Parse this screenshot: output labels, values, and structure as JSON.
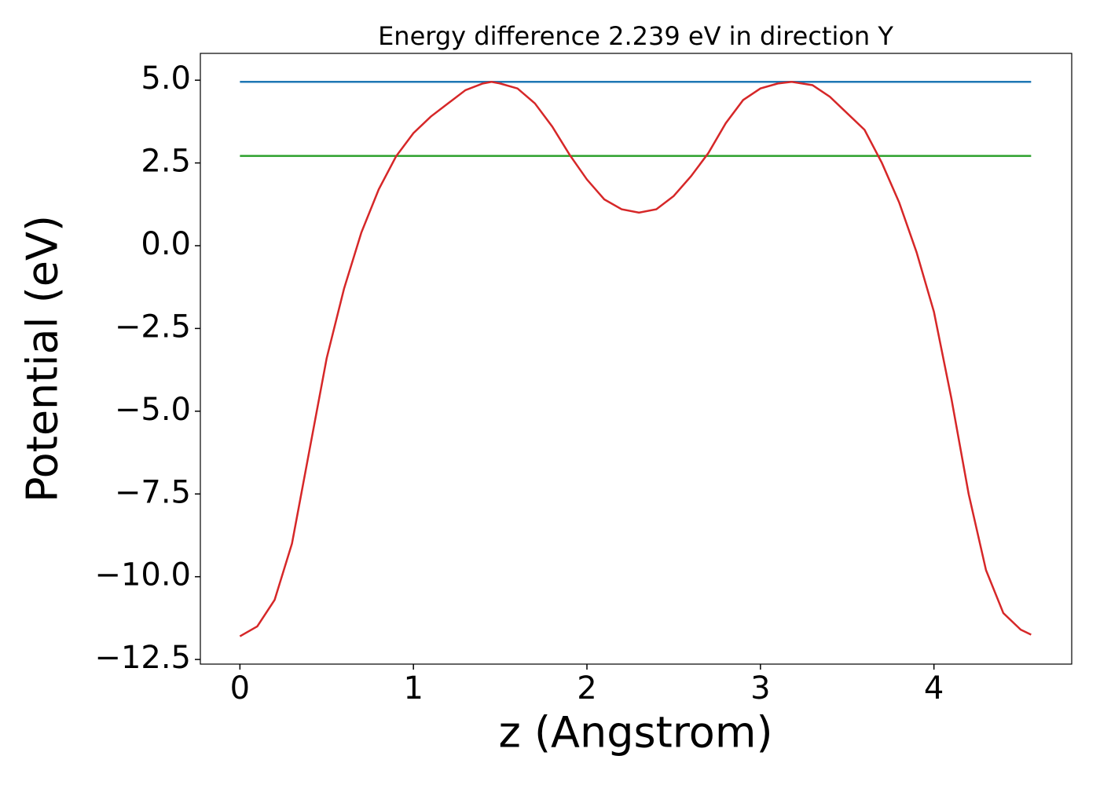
{
  "chart_data": {
    "type": "line",
    "title": "Energy difference 2.239 eV in direction Y",
    "xlabel": "z (Angstrom)",
    "ylabel": "Potential (eV)",
    "xlim": [
      -0.228,
      4.794
    ],
    "ylim": [
      -12.64,
      5.81
    ],
    "xticks": [
      0,
      1,
      2,
      3,
      4
    ],
    "yticks": [
      {
        "value": 5,
        "label": "5.0"
      },
      {
        "value": 2.5,
        "label": "2.5"
      },
      {
        "value": 0,
        "label": "0.0"
      },
      {
        "value": -2.5,
        "label": "−2.5"
      },
      {
        "value": -5,
        "label": "−5.0"
      },
      {
        "value": -7.5,
        "label": "−7.5"
      },
      {
        "value": -10,
        "label": "−10.0"
      },
      {
        "value": -12.5,
        "label": "−12.5"
      }
    ],
    "series": [
      {
        "color": "#1f77b4",
        "x": [
          0,
          4.56
        ],
        "values": [
          4.95,
          4.95
        ]
      },
      {
        "color": "#2ca02c",
        "x": [
          0,
          4.56
        ],
        "values": [
          2.711,
          2.711
        ]
      },
      {
        "color": "#d62728",
        "x": [
          0,
          0.1,
          0.2,
          0.3,
          0.4,
          0.5,
          0.6,
          0.7,
          0.8,
          0.9,
          1.0,
          1.1,
          1.2,
          1.3,
          1.4,
          1.45,
          1.5,
          1.6,
          1.7,
          1.8,
          1.9,
          2.0,
          2.1,
          2.2,
          2.3,
          2.4,
          2.5,
          2.6,
          2.7,
          2.8,
          2.9,
          3.0,
          3.1,
          3.18,
          3.3,
          3.4,
          3.5,
          3.6,
          3.7,
          3.8,
          3.9,
          4.0,
          4.1,
          4.2,
          4.3,
          4.4,
          4.5,
          4.56
        ],
        "values": [
          -11.8,
          -11.5,
          -10.7,
          -9.0,
          -6.2,
          -3.4,
          -1.3,
          0.4,
          1.7,
          2.7,
          3.4,
          3.9,
          4.3,
          4.7,
          4.9,
          4.95,
          4.9,
          4.75,
          4.3,
          3.6,
          2.75,
          2.0,
          1.4,
          1.1,
          1.0,
          1.1,
          1.5,
          2.1,
          2.8,
          3.7,
          4.4,
          4.75,
          4.9,
          4.95,
          4.85,
          4.5,
          4.0,
          3.5,
          2.5,
          1.3,
          -0.2,
          -2.0,
          -4.6,
          -7.5,
          -9.8,
          -11.1,
          -11.6,
          -11.75
        ]
      }
    ]
  }
}
